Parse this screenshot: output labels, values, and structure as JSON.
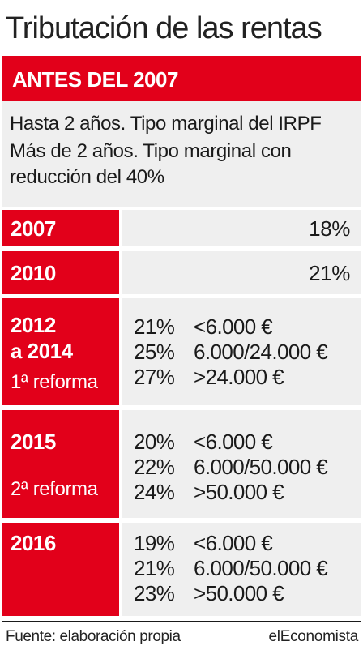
{
  "title": "Tributación de las rentas",
  "before": {
    "header": "ANTES DEL 2007",
    "lines": [
      "Hasta 2 años. Tipo marginal del IRPF",
      "Más de 2 años. Tipo marginal con",
      "reducción del 40%"
    ]
  },
  "rows": [
    {
      "year": "2007",
      "rate": "18%"
    },
    {
      "year": "2010",
      "rate": "21%"
    },
    {
      "year_line1": "2012",
      "year_line2": "a 2014",
      "reform": "1ª reforma",
      "brackets": [
        {
          "pct": "21%",
          "range": "<6.000 €"
        },
        {
          "pct": "25%",
          "range": "6.000/24.000 €"
        },
        {
          "pct": "27%",
          "range": ">24.000 €"
        }
      ]
    },
    {
      "year": "2015",
      "reform": "2ª reforma",
      "brackets": [
        {
          "pct": "20%",
          "range": "<6.000 €"
        },
        {
          "pct": "22%",
          "range": "6.000/50.000 €"
        },
        {
          "pct": "24%",
          "range": ">50.000 €"
        }
      ]
    },
    {
      "year": "2016",
      "brackets": [
        {
          "pct": "19%",
          "range": "<6.000 €"
        },
        {
          "pct": "21%",
          "range": "6.000/50.000 €"
        },
        {
          "pct": "23%",
          "range": ">50.000 €"
        }
      ]
    }
  ],
  "footer": {
    "source": "Fuente: elaboración propia",
    "brand": "elEconomista"
  },
  "colors": {
    "accent": "#e2001a",
    "panel": "#efefef",
    "text": "#1a1a1a"
  }
}
